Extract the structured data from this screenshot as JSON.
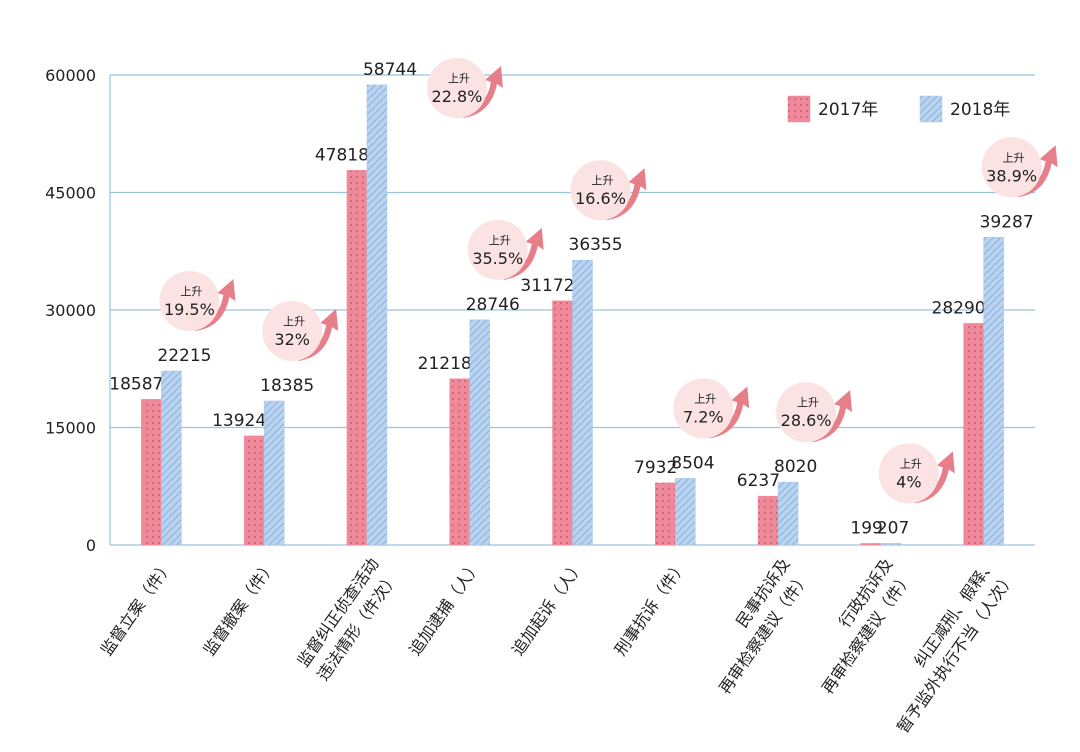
{
  "chart_data": {
    "type": "bar",
    "categories": [
      [
        "监督立案（件）"
      ],
      [
        "监督撤案（件）"
      ],
      [
        "监督纠正侦查活动",
        "违法情形（件次）"
      ],
      [
        "追加逮捕（人）"
      ],
      [
        "追加起诉（人）"
      ],
      [
        "刑事抗诉（件）"
      ],
      [
        "民事抗诉及",
        "再审检察建议（件）"
      ],
      [
        "行政抗诉及",
        "再审检察建议（件）"
      ],
      [
        "纠正减刑、假释、",
        "暂予监外执行不当（人次）"
      ]
    ],
    "series": [
      {
        "name": "2017年",
        "color": "#ef8a9b",
        "values": [
          18587,
          13924,
          47818,
          21218,
          31172,
          7932,
          6237,
          199,
          28290
        ]
      },
      {
        "name": "2018年",
        "color": "#a8c7ea",
        "values": [
          22215,
          18385,
          58744,
          28746,
          36355,
          8504,
          8020,
          207,
          39287
        ]
      }
    ],
    "increase_label": "上升",
    "changes": [
      "19.5%",
      "32%",
      "22.8%",
      "35.5%",
      "16.6%",
      "7.2%",
      "28.6%",
      "4%",
      "38.9%"
    ],
    "ylim": [
      0,
      60000
    ],
    "yticks": [
      0,
      15000,
      30000,
      45000,
      60000
    ],
    "grid": true,
    "legend": "top-right"
  }
}
